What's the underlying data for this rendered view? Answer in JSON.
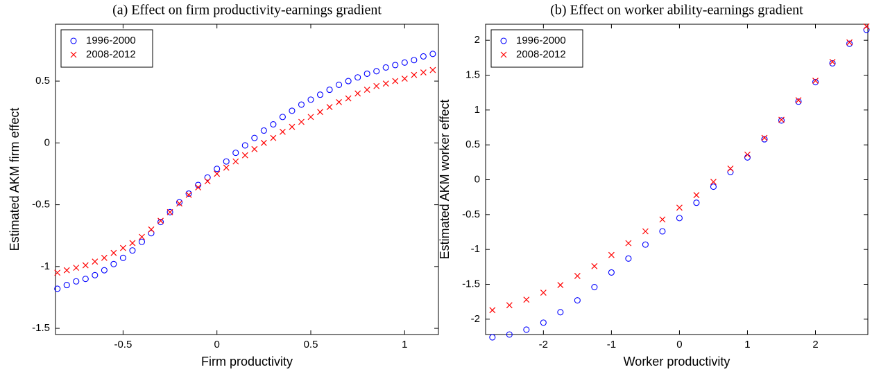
{
  "chart_data": [
    {
      "type": "scatter",
      "title": "(a) Effect on firm productivity-earnings gradient",
      "x_label": "Firm productivity",
      "y_label": "Estimated AKM firm effect",
      "xlim": [
        -0.86,
        1.18
      ],
      "ylim": [
        -1.55,
        0.96
      ],
      "xticks": [
        -0.5,
        0,
        0.5,
        1
      ],
      "yticks": [
        -1.5,
        -1,
        -0.5,
        0,
        0.5
      ],
      "legend": "upper left",
      "x": [
        -0.85,
        -0.8,
        -0.75,
        -0.7,
        -0.65,
        -0.6,
        -0.55,
        -0.5,
        -0.45,
        -0.4,
        -0.35,
        -0.3,
        -0.25,
        -0.2,
        -0.15,
        -0.1,
        -0.05,
        0,
        0.05,
        0.1,
        0.15,
        0.2,
        0.25,
        0.3,
        0.35,
        0.4,
        0.45,
        0.5,
        0.55,
        0.6,
        0.65,
        0.7,
        0.75,
        0.8,
        0.85,
        0.9,
        0.95,
        1,
        1.05,
        1.1,
        1.15
      ],
      "series": [
        {
          "name": "1996-2000",
          "color": "#0000ff",
          "marker": "o",
          "values": [
            -1.18,
            -1.15,
            -1.12,
            -1.1,
            -1.07,
            -1.03,
            -0.98,
            -0.93,
            -0.87,
            -0.8,
            -0.73,
            -0.64,
            -0.56,
            -0.48,
            -0.41,
            -0.34,
            -0.28,
            -0.21,
            -0.15,
            -0.08,
            -0.02,
            0.04,
            0.1,
            0.15,
            0.21,
            0.26,
            0.31,
            0.35,
            0.39,
            0.43,
            0.47,
            0.5,
            0.53,
            0.56,
            0.58,
            0.61,
            0.63,
            0.65,
            0.67,
            0.7,
            0.72
          ]
        },
        {
          "name": "2008-2012",
          "color": "#ff0000",
          "marker": "x",
          "values": [
            -1.05,
            -1.03,
            -1.01,
            -0.99,
            -0.96,
            -0.93,
            -0.89,
            -0.85,
            -0.81,
            -0.76,
            -0.7,
            -0.63,
            -0.56,
            -0.49,
            -0.42,
            -0.36,
            -0.31,
            -0.25,
            -0.2,
            -0.15,
            -0.1,
            -0.05,
            0,
            0.04,
            0.09,
            0.13,
            0.17,
            0.21,
            0.25,
            0.29,
            0.33,
            0.36,
            0.4,
            0.43,
            0.46,
            0.48,
            0.5,
            0.52,
            0.55,
            0.57,
            0.59
          ]
        }
      ]
    },
    {
      "type": "scatter",
      "title": "(b) Effect on worker ability-earnings gradient",
      "x_label": "Worker productivity",
      "y_label": "Estimated AKM worker effect",
      "xlim": [
        -2.85,
        2.77
      ],
      "ylim": [
        -2.22,
        2.23
      ],
      "xticks": [
        -2,
        -1,
        0,
        1,
        2
      ],
      "yticks": [
        -2,
        -1.5,
        -1,
        -0.5,
        0,
        0.5,
        1,
        1.5,
        2
      ],
      "legend": "upper left",
      "x": [
        -2.75,
        -2.5,
        -2.25,
        -2,
        -1.75,
        -1.5,
        -1.25,
        -1,
        -0.75,
        -0.5,
        -0.25,
        0,
        0.25,
        0.5,
        0.75,
        1,
        1.25,
        1.5,
        1.75,
        2,
        2.25,
        2.5,
        2.75
      ],
      "series": [
        {
          "name": "1996-2000",
          "color": "#0000ff",
          "marker": "o",
          "values": [
            -2.26,
            -2.22,
            -2.15,
            -2.05,
            -1.9,
            -1.73,
            -1.54,
            -1.33,
            -1.13,
            -0.93,
            -0.74,
            -0.55,
            -0.33,
            -0.1,
            0.11,
            0.32,
            0.58,
            0.85,
            1.12,
            1.4,
            1.67,
            1.95,
            2.15
          ]
        },
        {
          "name": "2008-2012",
          "color": "#ff0000",
          "marker": "x",
          "values": [
            -1.87,
            -1.8,
            -1.72,
            -1.62,
            -1.51,
            -1.38,
            -1.24,
            -1.08,
            -0.91,
            -0.74,
            -0.57,
            -0.4,
            -0.22,
            -0.03,
            0.16,
            0.36,
            0.6,
            0.86,
            1.14,
            1.42,
            1.69,
            1.97,
            2.2
          ]
        }
      ]
    }
  ]
}
